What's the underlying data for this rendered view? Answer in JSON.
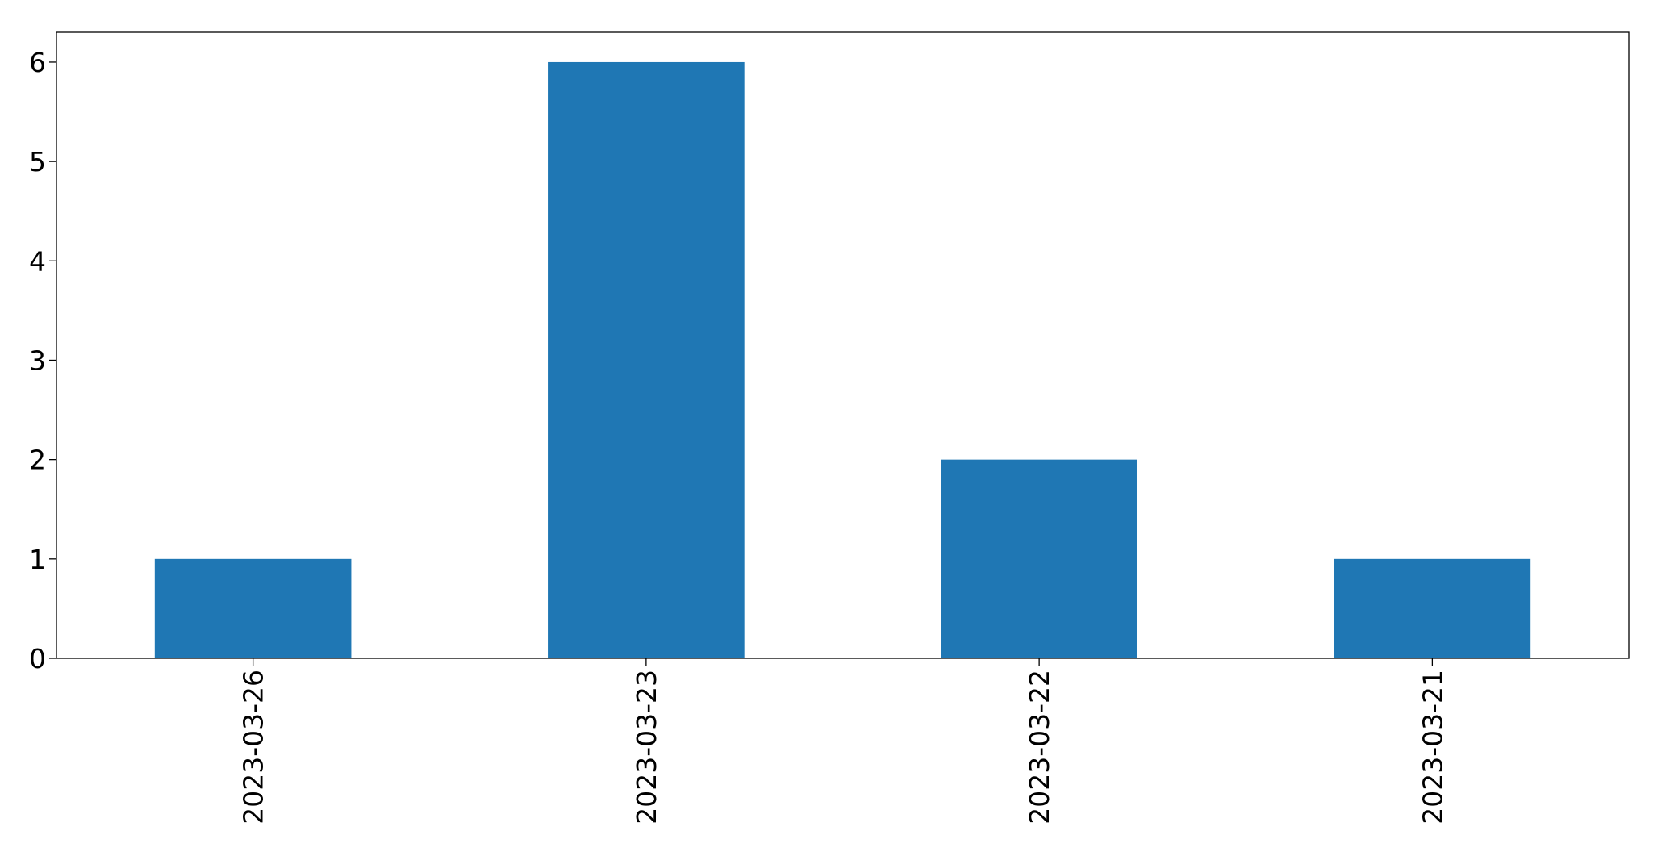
{
  "chart_data": {
    "type": "bar",
    "categories": [
      "2023-03-26",
      "2023-03-23",
      "2023-03-22",
      "2023-03-21"
    ],
    "values": [
      1,
      6,
      2,
      1
    ],
    "title": "",
    "xlabel": "",
    "ylabel": "",
    "ylim": [
      0,
      6.3
    ],
    "yticks": [
      0,
      1,
      2,
      3,
      4,
      5,
      6
    ],
    "grid": false,
    "legend": "none",
    "bar_color": "#1f77b4"
  }
}
